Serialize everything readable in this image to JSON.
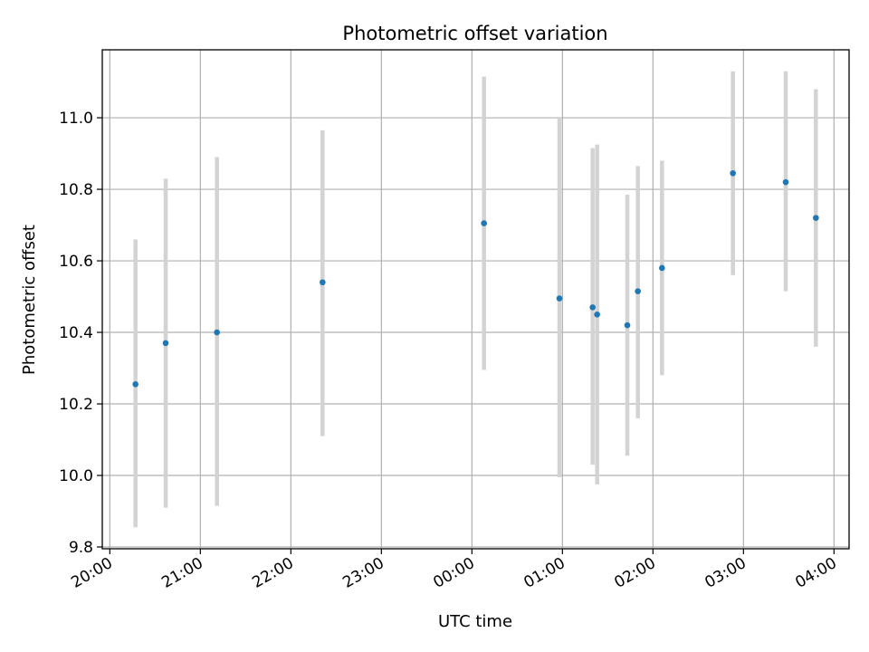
{
  "chart_data": {
    "type": "scatter",
    "title": "Photometric offset variation",
    "xlabel": "UTC time",
    "ylabel": "Photometric offset",
    "x_axis_type": "time",
    "xlim": [
      "19:55",
      "04:10"
    ],
    "ylim": [
      9.795,
      11.19
    ],
    "grid": true,
    "x_ticks": [
      "20:00",
      "21:00",
      "22:00",
      "23:00",
      "00:00",
      "01:00",
      "02:00",
      "03:00",
      "04:00"
    ],
    "y_ticks": [
      "9.8",
      "10.0",
      "10.2",
      "10.4",
      "10.6",
      "10.8",
      "11.0"
    ],
    "marker_color": "#1f77b4",
    "errorbar_color": "#d3d3d3",
    "points": [
      {
        "time": "20:17",
        "y": 10.255,
        "err_low": 9.855,
        "err_high": 10.66
      },
      {
        "time": "20:37",
        "y": 10.37,
        "err_low": 9.91,
        "err_high": 10.83
      },
      {
        "time": "21:11",
        "y": 10.4,
        "err_low": 9.915,
        "err_high": 10.89
      },
      {
        "time": "22:21",
        "y": 10.54,
        "err_low": 10.11,
        "err_high": 10.965
      },
      {
        "time": "00:08",
        "y": 10.705,
        "err_low": 10.295,
        "err_high": 11.115
      },
      {
        "time": "00:58",
        "y": 10.495,
        "err_low": 9.995,
        "err_high": 11.0
      },
      {
        "time": "01:20",
        "y": 10.47,
        "err_low": 10.03,
        "err_high": 10.915
      },
      {
        "time": "01:23",
        "y": 10.45,
        "err_low": 9.975,
        "err_high": 10.925
      },
      {
        "time": "01:43",
        "y": 10.42,
        "err_low": 10.055,
        "err_high": 10.785
      },
      {
        "time": "01:50",
        "y": 10.515,
        "err_low": 10.16,
        "err_high": 10.865
      },
      {
        "time": "02:06",
        "y": 10.58,
        "err_low": 10.28,
        "err_high": 10.88
      },
      {
        "time": "02:53",
        "y": 10.845,
        "err_low": 10.56,
        "err_high": 11.13
      },
      {
        "time": "03:28",
        "y": 10.82,
        "err_low": 10.515,
        "err_high": 11.13
      },
      {
        "time": "03:48",
        "y": 10.72,
        "err_low": 10.36,
        "err_high": 11.08
      }
    ]
  }
}
